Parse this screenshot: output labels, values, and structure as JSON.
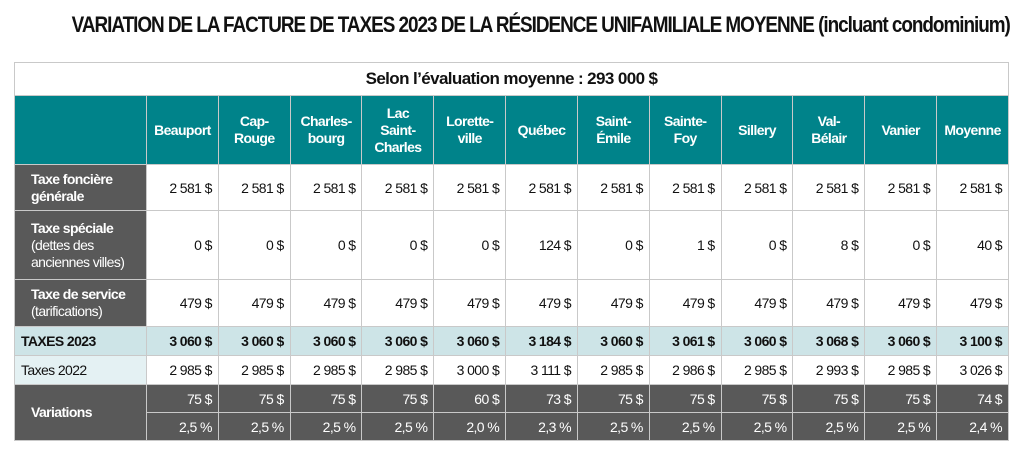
{
  "title": "VARIATION DE LA FACTURE DE TAXES 2023 DE LA RÉSIDENCE UNIFAMILIALE MOYENNE (incluant condominium)",
  "subtitle": "Selon l’évaluation moyenne : 293 000 $",
  "columns": [
    [
      "Beauport"
    ],
    [
      "Cap-",
      "Rouge"
    ],
    [
      "Charles-",
      "bourg"
    ],
    [
      "Lac",
      "Saint-",
      "Charles"
    ],
    [
      "Lorette-",
      "ville"
    ],
    [
      "Québec"
    ],
    [
      "Saint-",
      "Émile"
    ],
    [
      "Sainte-",
      "Foy"
    ],
    [
      "Sillery"
    ],
    [
      "Val-",
      "Bélair"
    ],
    [
      "Vanier"
    ],
    [
      "Moyenne"
    ]
  ],
  "rows": {
    "fonciere": {
      "label_bold": "Taxe foncière générale",
      "label_normal": "",
      "values": [
        "2 581 $",
        "2 581 $",
        "2 581 $",
        "2 581 $",
        "2 581 $",
        "2 581 $",
        "2 581 $",
        "2 581 $",
        "2 581 $",
        "2 581 $",
        "2 581 $",
        "2 581 $"
      ]
    },
    "speciale": {
      "label_bold": "Taxe spéciale",
      "label_normal": "(dettes des anciennes villes)",
      "values": [
        "0 $",
        "0 $",
        "0 $",
        "0 $",
        "0 $",
        "124 $",
        "0 $",
        "1 $",
        "0 $",
        "8 $",
        "0 $",
        "40 $"
      ]
    },
    "service": {
      "label_bold": "Taxe de service",
      "label_normal": "(tarifications)",
      "values": [
        "479 $",
        "479 $",
        "479 $",
        "479 $",
        "479 $",
        "479 $",
        "479 $",
        "479 $",
        "479 $",
        "479 $",
        "479 $",
        "479 $"
      ]
    },
    "taxes2023": {
      "label": "TAXES 2023",
      "values": [
        "3 060 $",
        "3 060 $",
        "3 060 $",
        "3 060 $",
        "3 060 $",
        "3 184 $",
        "3 060 $",
        "3 061 $",
        "3 060 $",
        "3 068 $",
        "3 060 $",
        "3 100 $"
      ]
    },
    "taxes2022": {
      "label": "Taxes 2022",
      "values": [
        "2 985 $",
        "2 985 $",
        "2 985 $",
        "2 985 $",
        "3 000 $",
        "3 111 $",
        "2 985 $",
        "2 986 $",
        "2 985 $",
        "2 993 $",
        "2 985 $",
        "3 026 $"
      ]
    },
    "variations": {
      "label": "Variations",
      "dollars": [
        "75 $",
        "75 $",
        "75 $",
        "75 $",
        "60 $",
        "73 $",
        "75 $",
        "75 $",
        "75 $",
        "75 $",
        "75 $",
        "74 $"
      ],
      "percent": [
        "2,5 %",
        "2,5 %",
        "2,5 %",
        "2,5 %",
        "2,0 %",
        "2,3 %",
        "2,5 %",
        "2,5 %",
        "2,5 %",
        "2,5 %",
        "2,5 %",
        "2,4 %"
      ]
    }
  },
  "colors": {
    "header": "#00838a",
    "label_dark": "#595959",
    "total_row": "#cde4e7"
  }
}
